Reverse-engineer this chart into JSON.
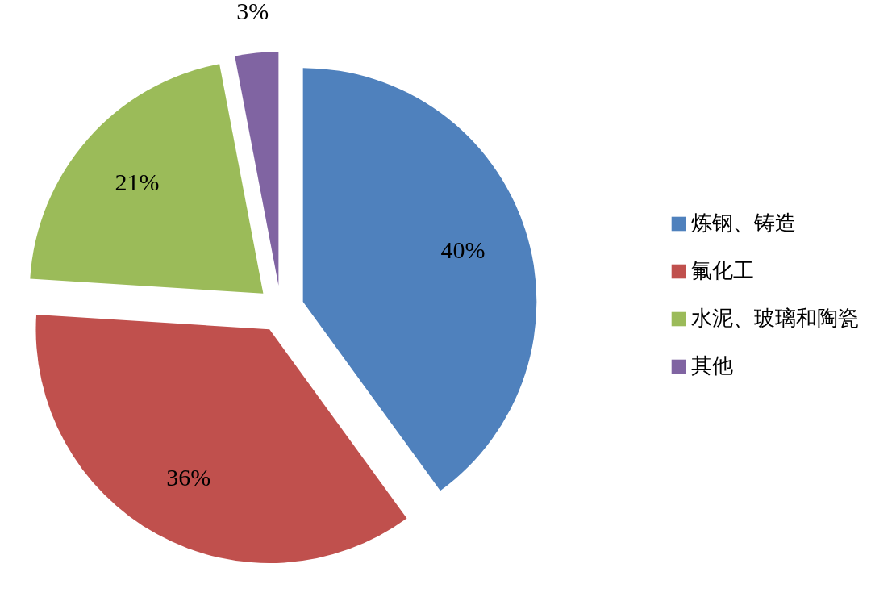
{
  "chart_data": {
    "type": "pie",
    "categories": [
      "炼钢、铸造",
      "氟化工",
      "水泥、玻璃和陶瓷",
      "其他"
    ],
    "values": [
      40,
      36,
      21,
      3
    ],
    "colors": [
      "#4f81bd",
      "#c0504d",
      "#9bbb59",
      "#8064a2"
    ],
    "value_labels": [
      "40%",
      "36%",
      "21%",
      "3%"
    ],
    "legend": "right"
  }
}
